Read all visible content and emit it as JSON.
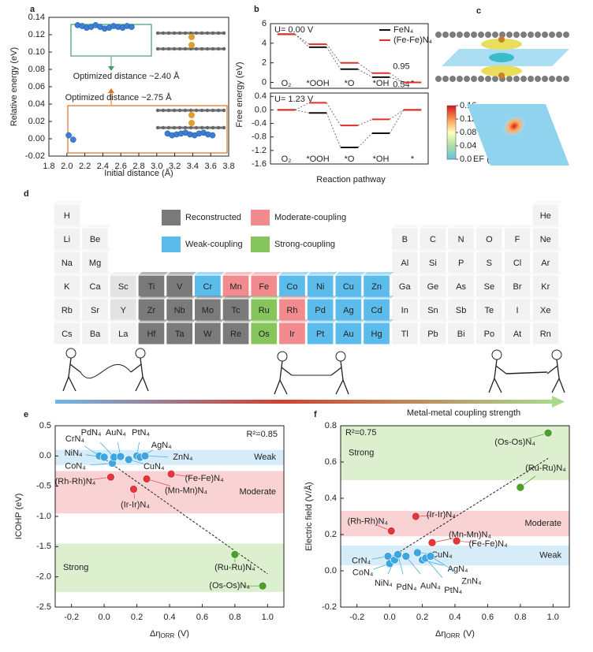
{
  "chart_data": [
    {
      "panel": "a",
      "type": "scatter",
      "xlabel": "Initial distance (Å)",
      "ylabel": "Relative energy (eV)",
      "xlim": [
        1.8,
        3.8
      ],
      "ylim": [
        -0.02,
        0.14
      ],
      "xticks": [
        1.8,
        {
          "value": 2,
          "label": "2.0"
        },
        2.2,
        2.4,
        2.6,
        2.8,
        {
          "value": 3,
          "label": "3.0"
        },
        3.2,
        3.4,
        3.6,
        3.8
      ],
      "yticks": [
        -0.02,
        {
          "value": 0,
          "label": "0.00"
        },
        0.02,
        0.04,
        0.06,
        0.08,
        {
          "value": 0.1,
          "label": "0.10"
        },
        0.12,
        0.14
      ],
      "series": [
        {
          "color": "#3b7fd4",
          "x": [
            2.12,
            2.17,
            2.22,
            2.27,
            2.32,
            2.37,
            2.42,
            2.47,
            2.52,
            2.57,
            2.62,
            2.67,
            2.72
          ],
          "y": [
            0.131,
            0.13,
            0.128,
            0.129,
            0.131,
            0.129,
            0.127,
            0.128,
            0.13,
            0.129,
            0.128,
            0.13,
            0.129
          ]
        },
        {
          "color": "#3b7fd4",
          "x": [
            2.02,
            2.07,
            3.12,
            3.17,
            3.22,
            3.27,
            3.32,
            3.37,
            3.42,
            3.47,
            3.52,
            3.57,
            3.62
          ],
          "y": [
            0.004,
            -0.001,
            0.006,
            0.004,
            0.005,
            0.006,
            0.007,
            0.005,
            0.004,
            0.006,
            0.007,
            0.005,
            0.004
          ]
        }
      ],
      "annotations": [
        {
          "text": "Optimized distance ~2.40 Å",
          "color": "#3f9f6a"
        },
        {
          "text": "Optimized distance ~2.75 Å",
          "color": "#d9731f"
        }
      ]
    },
    {
      "panel": "b",
      "type": "energy-levels",
      "title": "U= 0.00 V",
      "ylabel": "Free energy (eV)",
      "categories": [
        "O₂",
        "*OOH",
        "*O",
        "*OH",
        "*"
      ],
      "ylim": [
        -0.6,
        6
      ],
      "yticks": [
        0,
        2,
        4,
        6
      ],
      "series": [
        {
          "name": "FeN₄",
          "color": "#111111",
          "values": [
            4.92,
            3.6,
            1.35,
            0.54,
            0
          ],
          "value_labels": [
            null,
            null,
            null,
            "0.54",
            null
          ]
        },
        {
          "name": "(Fe-Fe)N₄",
          "color": "#e0302a",
          "values": [
            4.92,
            3.9,
            2.0,
            0.95,
            0
          ],
          "value_labels": [
            null,
            null,
            null,
            "0.95",
            null
          ]
        }
      ]
    },
    {
      "type": "energy-levels",
      "title": "U= 1.23 V",
      "xlabel": "Reaction pathway",
      "categories": [
        "O₂",
        "*OOH",
        "*O",
        "*OH",
        "*"
      ],
      "ylim": [
        -1.6,
        0.5
      ],
      "yticks": [
        0.4,
        {
          "value": 0,
          "label": "0.0"
        },
        -0.4,
        -0.8,
        -1.2,
        -1.6
      ],
      "series": [
        {
          "color": "#111111",
          "values": [
            0,
            -0.09,
            -1.11,
            -0.69,
            0
          ]
        },
        {
          "color": "#e0302a",
          "values": [
            0,
            0.21,
            -0.46,
            -0.28,
            0
          ]
        }
      ]
    },
    {
      "panel": "e",
      "type": "scatter",
      "xlabel": {
        "symbol": "Δη",
        "subscript": "ORR",
        "unit": "(V)"
      },
      "ylabel": "ICOHP (eV)",
      "annotation": "R²=0.85",
      "xlim": [
        -0.3,
        1.1
      ],
      "ylim": [
        -2.5,
        0.5
      ],
      "xticks": [
        -0.2,
        {
          "value": 0,
          "label": "0.0"
        },
        0.2,
        0.4,
        0.6,
        0.8,
        {
          "value": 1,
          "label": "1.0"
        }
      ],
      "yticks": [
        -2.5,
        {
          "value": -2,
          "label": "-2.0"
        },
        -1.5,
        {
          "value": -1,
          "label": "-1.0"
        },
        -0.5,
        {
          "value": 0,
          "label": "0.0"
        },
        0.5
      ],
      "bands": [
        {
          "name": "Weak",
          "color": "#d6edf9",
          "text_color": "#3da5e0",
          "range": [
            0.1,
            -0.15
          ]
        },
        {
          "name": "Moderate",
          "color": "#f9d2d4",
          "text_color": "#e0383a",
          "range": [
            -0.25,
            -0.95
          ]
        },
        {
          "name": "Strong",
          "color": "#dcefcf",
          "text_color": "#4e9e2e",
          "range": [
            -1.45,
            -2.25
          ]
        }
      ],
      "series": [
        {
          "color": "#3da5e0",
          "labels": [
            "CrN₄",
            "NiN₄",
            "CoN₄",
            "PdN₄",
            "AuN₄",
            "PtN₄",
            "AgN₄",
            "CuN₄",
            "ZnN₄"
          ],
          "x": [
            -0.03,
            0.0,
            0.05,
            0.06,
            0.1,
            0.2,
            0.22,
            0.15,
            0.25
          ],
          "y": [
            0.0,
            -0.02,
            -0.12,
            -0.02,
            -0.01,
            0.0,
            -0.02,
            -0.06,
            0.0
          ]
        },
        {
          "color": "#e0383a",
          "labels": [
            "(Rh-Rh)N₄",
            "(Ir-Ir)N₄",
            "(Mn-Mn)N₄",
            "(Fe-Fe)N₄"
          ],
          "x": [
            0.04,
            0.18,
            0.26,
            0.41
          ],
          "y": [
            -0.35,
            -0.55,
            -0.38,
            -0.3
          ]
        },
        {
          "color": "#4e9e2e",
          "labels": [
            "(Ru-Ru)N₄",
            "(Os-Os)N₄"
          ],
          "x": [
            0.8,
            0.97
          ],
          "y": [
            -1.63,
            -2.15
          ]
        }
      ],
      "fit": {
        "x": [
          -0.05,
          1.0
        ],
        "y": [
          0.05,
          -1.95
        ]
      }
    },
    {
      "panel": "f",
      "type": "scatter",
      "xlabel": {
        "symbol": "Δη",
        "subscript": "ORR",
        "unit": "(V)"
      },
      "ylabel": "Electric field (V/Å)",
      "annotation": "R²=0.75",
      "xlim": [
        -0.3,
        1.1
      ],
      "ylim": [
        -0.2,
        0.8
      ],
      "xticks": [
        -0.2,
        {
          "value": 0,
          "label": "0.0"
        },
        0.2,
        0.4,
        0.6,
        0.8,
        {
          "value": 1,
          "label": "1.0"
        }
      ],
      "yticks": [
        -0.2,
        {
          "value": 0,
          "label": "0.0"
        },
        0.2,
        0.4,
        0.6,
        0.8
      ],
      "bands": [
        {
          "name": "Strong",
          "color": "#dcefcf",
          "text_color": "#4e9e2e",
          "range": [
            0.8,
            0.5
          ]
        },
        {
          "name": "Moderate",
          "color": "#f9d2d4",
          "text_color": "#e0383a",
          "range": [
            0.33,
            0.19
          ]
        },
        {
          "name": "Weak",
          "color": "#d6edf9",
          "text_color": "#3da5e0",
          "range": [
            0.14,
            0.03
          ]
        }
      ],
      "series": [
        {
          "color": "#4e9e2e",
          "labels": [
            "(Os-Os)N₄",
            "(Ru-Ru)N₄"
          ],
          "x": [
            0.97,
            0.8
          ],
          "y": [
            0.76,
            0.46
          ]
        },
        {
          "color": "#e0383a",
          "labels": [
            "(Rh-Rh)N₄",
            "(Ir-Ir)N₄",
            "(Mn-Mn)N₄",
            "(Fe-Fe)N₄"
          ],
          "x": [
            0.01,
            0.16,
            0.26,
            0.41
          ],
          "y": [
            0.22,
            0.3,
            0.155,
            0.165
          ]
        },
        {
          "color": "#3da5e0",
          "labels": [
            "CrN₄",
            "CoN₄",
            "NiN₄",
            "PdN₄",
            "AuN₄",
            "CuN₄",
            "AgN₄",
            "PtN₄",
            "ZnN₄"
          ],
          "x": [
            -0.01,
            0.0,
            0.03,
            0.05,
            0.1,
            0.17,
            0.2,
            0.22,
            0.25
          ],
          "y": [
            0.08,
            0.04,
            0.06,
            0.09,
            0.08,
            0.1,
            0.06,
            0.07,
            0.08
          ]
        }
      ],
      "fit": {
        "x": [
          0.0,
          0.97
        ],
        "y": [
          0.07,
          0.62
        ]
      }
    }
  ],
  "panel_c": {
    "panel": "c",
    "colorbar": {
      "lim": [
        0,
        0.16
      ],
      "ticks": [
        0.16,
        0.12,
        0.08,
        0.04,
        {
          "value": 0,
          "label": "0.0"
        }
      ],
      "label": "EF (V/Å)"
    }
  },
  "panel_d": {
    "panel": "d",
    "legend": [
      {
        "name": "Reconstructed",
        "color": "#7a7a7a"
      },
      {
        "name": "Moderate-coupling",
        "color": "#f28b8e"
      },
      {
        "name": "Weak-coupling",
        "color": "#5bbbeb"
      },
      {
        "name": "Strong-coupling",
        "color": "#86c45c"
      }
    ],
    "rows": [
      [
        {
          "symbol": "H",
          "faded": true
        },
        null,
        null,
        null,
        null,
        null,
        null,
        null,
        null,
        null,
        null,
        null,
        null,
        null,
        null,
        null,
        null,
        {
          "symbol": "He",
          "faded": true
        }
      ],
      [
        {
          "symbol": "Li",
          "faded": true
        },
        {
          "symbol": "Be",
          "faded": true
        },
        null,
        null,
        null,
        null,
        null,
        null,
        null,
        null,
        null,
        null,
        {
          "symbol": "B",
          "faded": true
        },
        {
          "symbol": "C",
          "faded": true
        },
        {
          "symbol": "N",
          "faded": true
        },
        {
          "symbol": "O",
          "faded": true
        },
        {
          "symbol": "F",
          "faded": true
        },
        {
          "symbol": "Ne",
          "faded": true
        }
      ],
      [
        {
          "symbol": "Na",
          "faded": true
        },
        {
          "symbol": "Mg",
          "faded": true
        },
        null,
        null,
        null,
        null,
        null,
        null,
        null,
        null,
        null,
        null,
        {
          "symbol": "Al",
          "faded": true
        },
        {
          "symbol": "Si",
          "faded": true
        },
        {
          "symbol": "P",
          "faded": true
        },
        {
          "symbol": "S",
          "faded": true
        },
        {
          "symbol": "Cl",
          "faded": true
        },
        {
          "symbol": "Ar",
          "faded": true
        }
      ],
      [
        {
          "symbol": "K",
          "faded": true
        },
        {
          "symbol": "Ca",
          "faded": true
        },
        {
          "symbol": "Sc"
        },
        {
          "symbol": "Ti",
          "group": 0
        },
        {
          "symbol": "V",
          "group": 0
        },
        {
          "symbol": "Cr",
          "group": 2
        },
        {
          "symbol": "Mn",
          "group": 1
        },
        {
          "symbol": "Fe",
          "group": 1
        },
        {
          "symbol": "Co",
          "group": 2
        },
        {
          "symbol": "Ni",
          "group": 2
        },
        {
          "symbol": "Cu",
          "group": 2
        },
        {
          "symbol": "Zn",
          "group": 2
        },
        {
          "symbol": "Ga",
          "faded": true
        },
        {
          "symbol": "Ge",
          "faded": true
        },
        {
          "symbol": "As",
          "faded": true
        },
        {
          "symbol": "Se",
          "faded": true
        },
        {
          "symbol": "Br",
          "faded": true
        },
        {
          "symbol": "Kr",
          "faded": true
        }
      ],
      [
        {
          "symbol": "Rb",
          "faded": true
        },
        {
          "symbol": "Sr",
          "faded": true
        },
        {
          "symbol": "Y"
        },
        {
          "symbol": "Zr",
          "group": 0
        },
        {
          "symbol": "Nb",
          "group": 0
        },
        {
          "symbol": "Mo",
          "group": 0
        },
        {
          "symbol": "Tc",
          "group": 0
        },
        {
          "symbol": "Ru",
          "group": 3
        },
        {
          "symbol": "Rh",
          "group": 1
        },
        {
          "symbol": "Pd",
          "group": 2
        },
        {
          "symbol": "Ag",
          "group": 2
        },
        {
          "symbol": "Cd",
          "group": 2
        },
        {
          "symbol": "In",
          "faded": true
        },
        {
          "symbol": "Sn",
          "faded": true
        },
        {
          "symbol": "Sb",
          "faded": true
        },
        {
          "symbol": "Te",
          "faded": true
        },
        {
          "symbol": "I",
          "faded": true
        },
        {
          "symbol": "Xe",
          "faded": true
        }
      ],
      [
        {
          "symbol": "Cs",
          "faded": true
        },
        {
          "symbol": "Ba",
          "faded": true
        },
        {
          "symbol": "La",
          "faded": true
        },
        {
          "symbol": "Hf",
          "group": 0
        },
        {
          "symbol": "Ta",
          "group": 0
        },
        {
          "symbol": "W",
          "group": 0
        },
        {
          "symbol": "Re",
          "group": 0
        },
        {
          "symbol": "Os",
          "group": 3
        },
        {
          "symbol": "Ir",
          "group": 1
        },
        {
          "symbol": "Pt",
          "group": 2
        },
        {
          "symbol": "Au",
          "group": 2
        },
        {
          "symbol": "Hg",
          "group": 2
        },
        {
          "symbol": "Tl",
          "faded": true
        },
        {
          "symbol": "Pb",
          "faded": true
        },
        {
          "symbol": "Bi",
          "faded": true
        },
        {
          "symbol": "Po",
          "faded": true
        },
        {
          "symbol": "At",
          "faded": true
        },
        {
          "symbol": "Rn",
          "faded": true
        }
      ]
    ],
    "axis_label": "Metal-metal coupling strength"
  }
}
